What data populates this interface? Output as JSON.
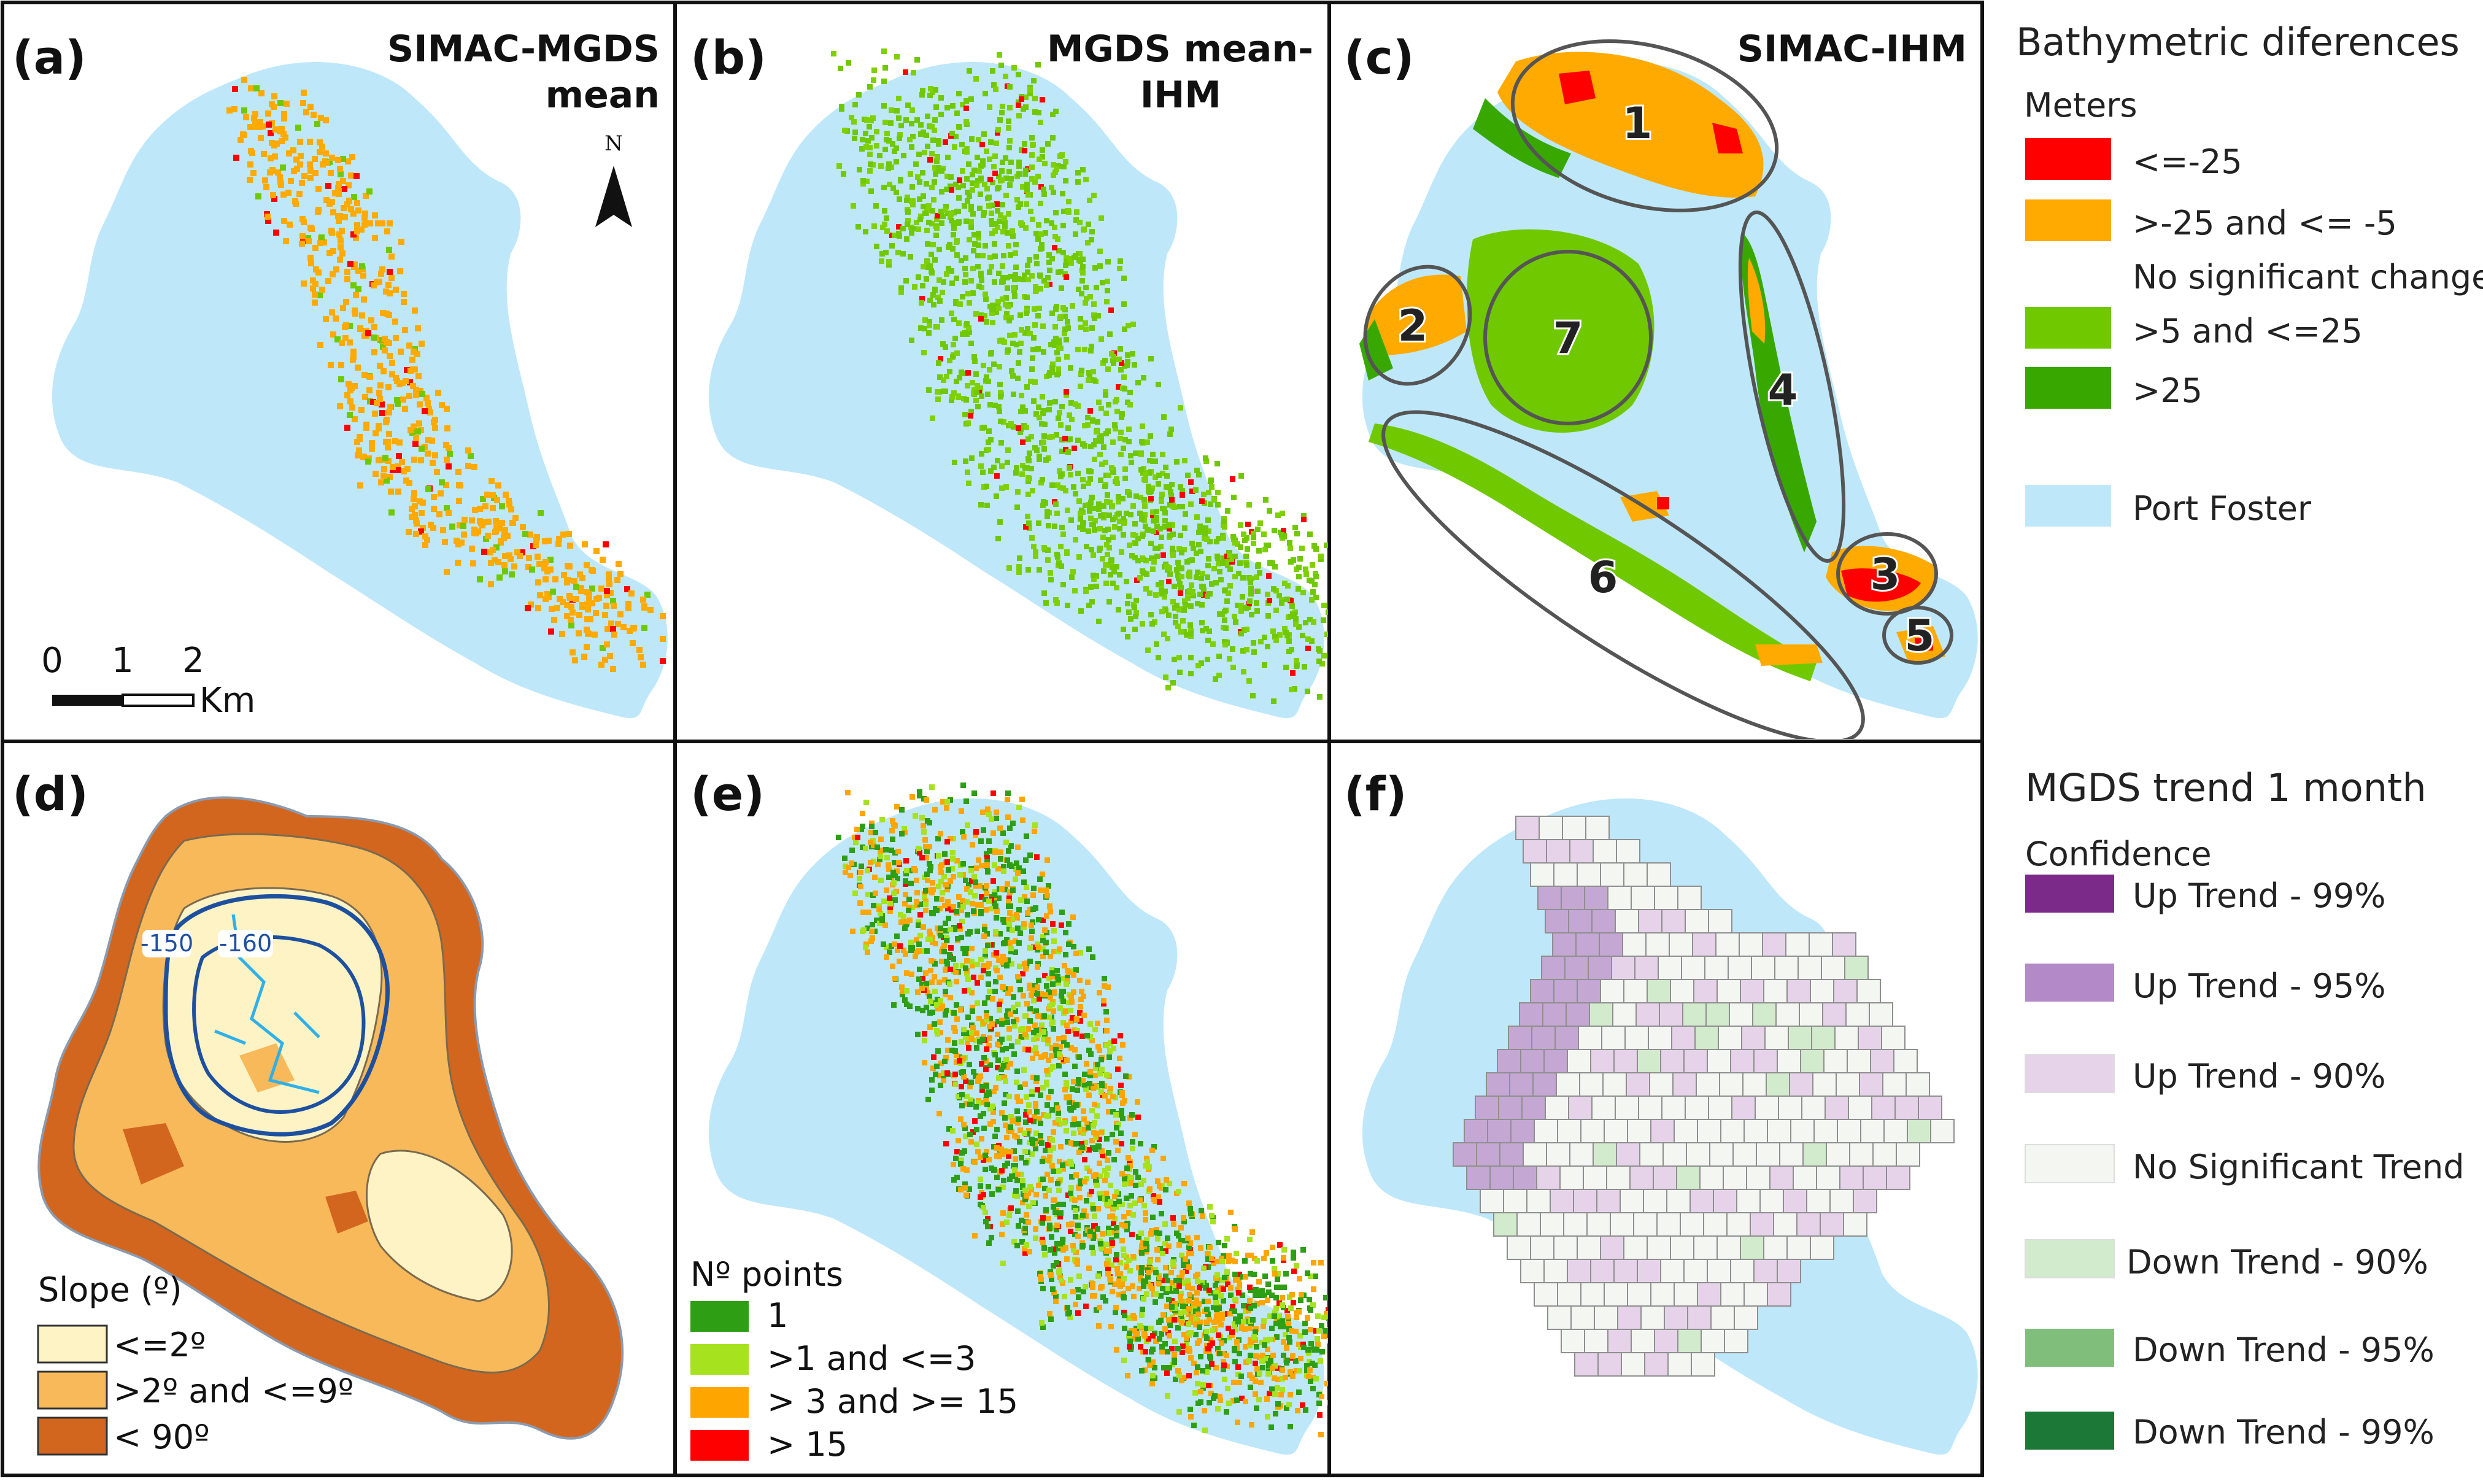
{
  "panels": {
    "a": {
      "label": "(a)",
      "title_line1": "SIMAC-MGDS",
      "title_line2": "mean"
    },
    "b": {
      "label": "(b)",
      "title_line1": "MGDS mean-",
      "title_line2": "IHM"
    },
    "c": {
      "label": "(c)",
      "title_line1": "SIMAC-IHM",
      "zones": [
        "1",
        "2",
        "3",
        "4",
        "5",
        "6",
        "7"
      ]
    },
    "d": {
      "label": "(d)",
      "contours": [
        "-150",
        "-160"
      ]
    },
    "e": {
      "label": "(e)"
    },
    "f": {
      "label": "(f)"
    }
  },
  "north_arrow": {
    "letter": "N"
  },
  "scale_bar": {
    "ticks": [
      "0",
      "1",
      "2"
    ],
    "unit": "Km"
  },
  "slope_legend": {
    "title": "Slope (º)",
    "items": [
      {
        "label": "<=2º",
        "color": "#fdf3c4"
      },
      {
        "label": ">2º and <=9º",
        "color": "#f7b95a"
      },
      {
        "label": "< 90º",
        "color": "#d3661e"
      }
    ]
  },
  "points_legend": {
    "title": "Nº points",
    "items": [
      {
        "label": "1",
        "color": "#2e9e14"
      },
      {
        "label": ">1 and  <=3",
        "color": "#a6e21d"
      },
      {
        "label": "> 3 and >= 15",
        "color": "#ffa500"
      },
      {
        "label": "> 15",
        "color": "#ff0000"
      }
    ]
  },
  "bathy_legend": {
    "title": "Bathymetric diferences",
    "subtitle": "Meters",
    "items": [
      {
        "label": "<=-25",
        "color": "#ff0000"
      },
      {
        "label": ">-25 and <= -5",
        "color": "#ffaa00"
      },
      {
        "label": "No significant change",
        "color": ""
      },
      {
        "label": ">5 and <=25",
        "color": "#70c800"
      },
      {
        "label": ">25",
        "color": "#38a800"
      },
      {
        "label": "Port Foster",
        "color": "#bee8fa"
      }
    ]
  },
  "trend_legend": {
    "title": "MGDS trend 1 month",
    "subtitle": "Confidence",
    "items": [
      {
        "label": "Up Trend - 99%",
        "color": "#7b2a8a"
      },
      {
        "label": "Up Trend - 95%",
        "color": "#b38ac7"
      },
      {
        "label": "Up Trend - 90%",
        "color": "#e6d3ea"
      },
      {
        "label": "No Significant Trend",
        "color": "#f4f6f2"
      },
      {
        "label": "Down Trend - 90%",
        "color": "#d2ebcd"
      },
      {
        "label": "Down Trend - 95%",
        "color": "#7fbf7b"
      },
      {
        "label": "Down Trend - 99%",
        "color": "#1b7837"
      }
    ]
  },
  "colors": {
    "water": "#bee8fa",
    "red": "#ff0000",
    "orange": "#ffaa00",
    "green": "#70c800",
    "dark_green": "#38a800"
  }
}
